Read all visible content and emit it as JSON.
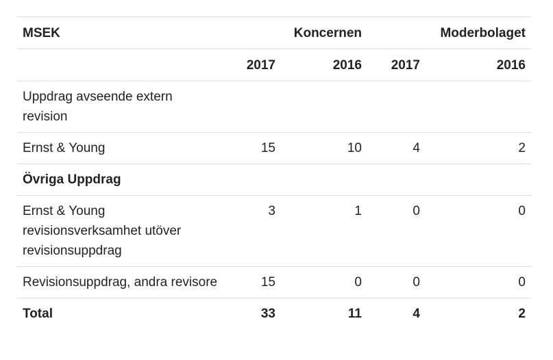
{
  "table": {
    "header": {
      "unit": "MSEK",
      "group_label": "Koncernen",
      "parent_label": "Moderbolaget"
    },
    "years": [
      "2017",
      "2016",
      "2017",
      "2016"
    ],
    "rows": [
      {
        "label": "Uppdrag avseende extern revision",
        "values": [
          "",
          "",
          "",
          ""
        ],
        "bold": false
      },
      {
        "label": "Ernst & Young",
        "values": [
          "15",
          "10",
          "4",
          "2"
        ],
        "bold": false
      },
      {
        "label": "Övriga Uppdrag",
        "values": [
          "",
          "",
          "",
          ""
        ],
        "bold": true
      },
      {
        "label": "Ernst & Young revisionsverksamhet utöver revisionsuppdrag",
        "values": [
          "3",
          "1",
          "0",
          "0"
        ],
        "bold": false
      },
      {
        "label": "Revisionsuppdrag, andra revisore",
        "values": [
          "15",
          "0",
          "0",
          "0"
        ],
        "bold": false
      },
      {
        "label": "Total",
        "values": [
          "33",
          "11",
          "4",
          "2"
        ],
        "bold": true
      }
    ]
  }
}
